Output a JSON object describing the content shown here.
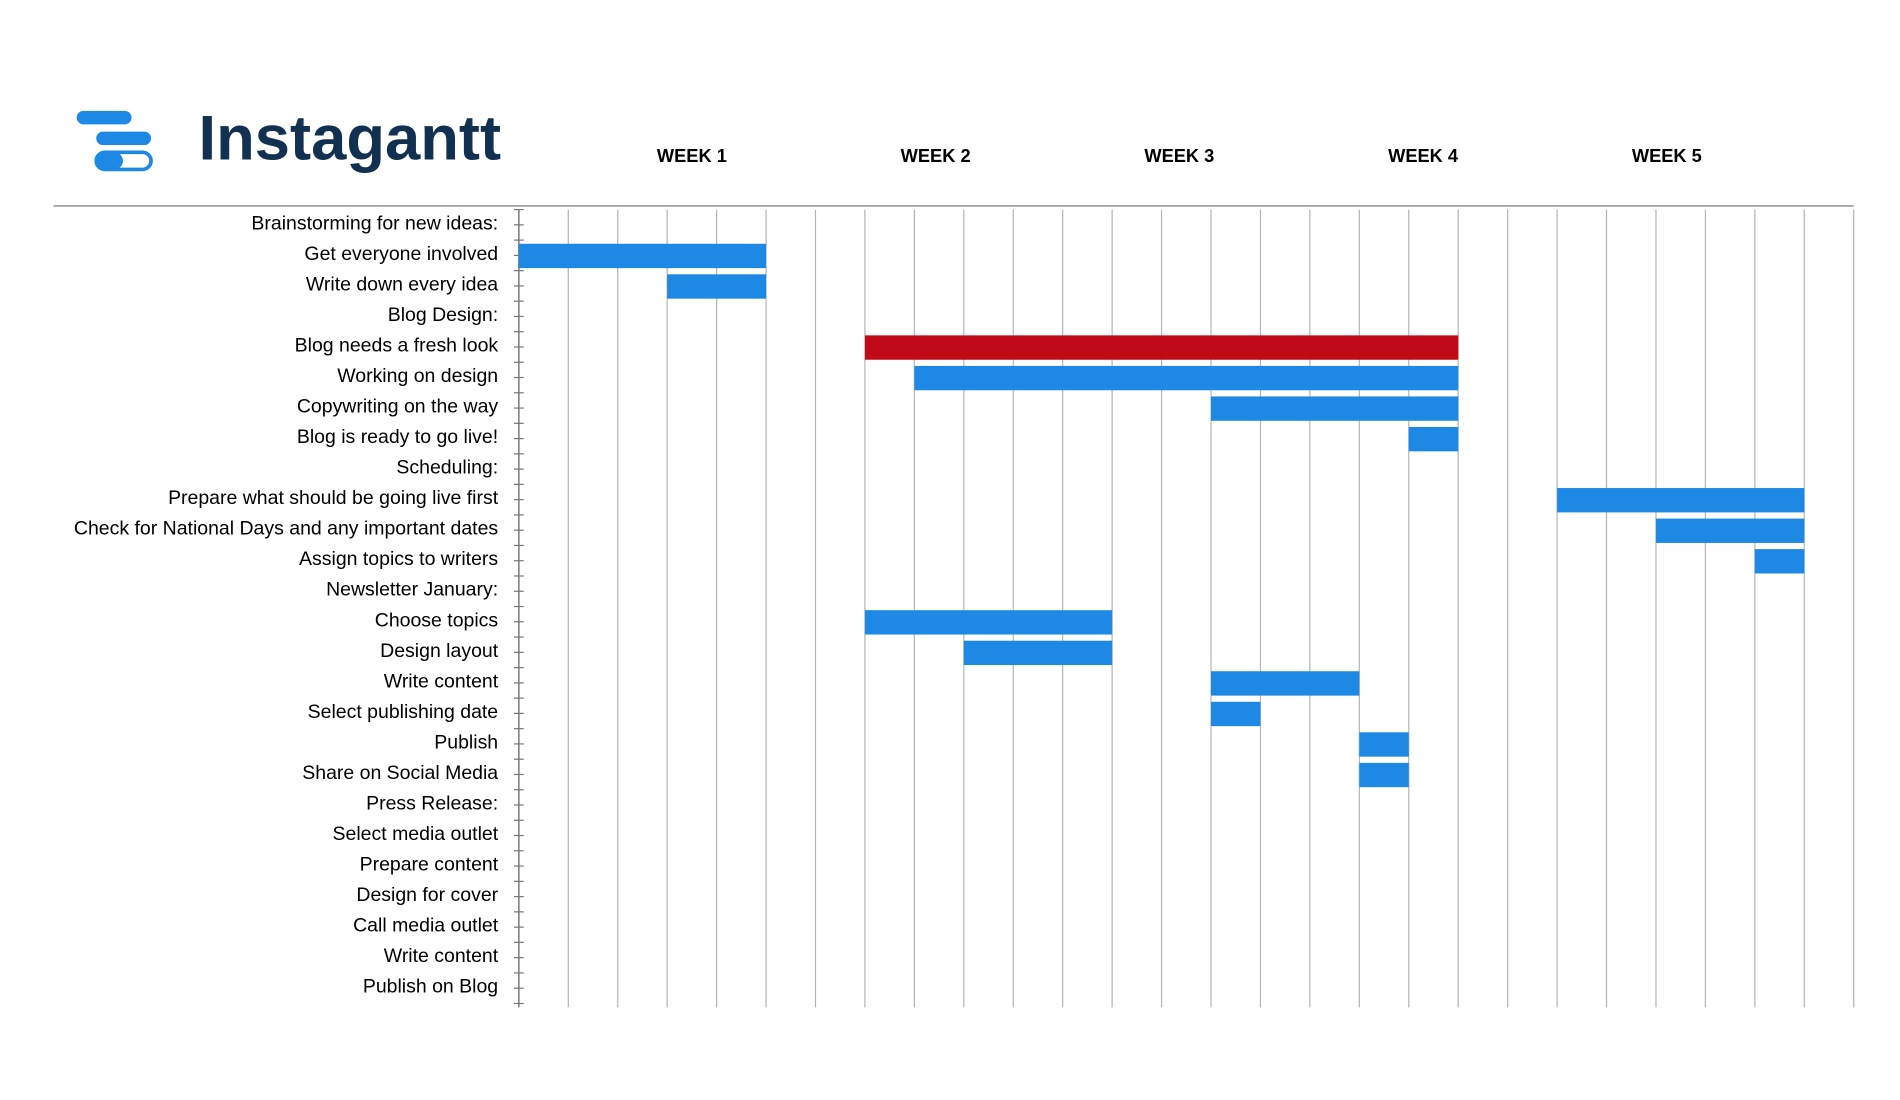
{
  "header": {
    "brand": "Instagantt"
  },
  "chart_data": {
    "type": "gantt",
    "weeks": [
      "WEEK 1",
      "WEEK 2",
      "WEEK 3",
      "WEEK 4",
      "WEEK 5"
    ],
    "xlim": [
      0,
      27
    ],
    "grid": true,
    "bar_color": "#1e88e5",
    "tasks": [
      {
        "name": "Brainstorming for new ideas:",
        "start": null,
        "end": null
      },
      {
        "name": "Get everyone involved",
        "start": 0,
        "end": 5
      },
      {
        "name": "Write down every idea",
        "start": 3,
        "end": 5
      },
      {
        "name": "Blog Design:",
        "start": null,
        "end": null
      },
      {
        "name": "Blog needs a fresh look",
        "start": 7,
        "end": 19,
        "color": "#c00a17"
      },
      {
        "name": "Working on design",
        "start": 8,
        "end": 19
      },
      {
        "name": "Copywriting on the way",
        "start": 14,
        "end": 19
      },
      {
        "name": "Blog is ready to go live!",
        "start": 18,
        "end": 19
      },
      {
        "name": "Scheduling:",
        "start": null,
        "end": null
      },
      {
        "name": "Prepare what should be going live first",
        "start": 21,
        "end": 26
      },
      {
        "name": "Check for National Days and any important dates",
        "start": 23,
        "end": 26
      },
      {
        "name": "Assign topics to writers",
        "start": 25,
        "end": 26
      },
      {
        "name": "Newsletter January:",
        "start": null,
        "end": null
      },
      {
        "name": "Choose topics",
        "start": 7,
        "end": 12
      },
      {
        "name": "Design layout",
        "start": 9,
        "end": 12
      },
      {
        "name": "Write content",
        "start": 14,
        "end": 17
      },
      {
        "name": "Select publishing date",
        "start": 14,
        "end": 15
      },
      {
        "name": "Publish",
        "start": 17,
        "end": 18
      },
      {
        "name": "Share on Social Media",
        "start": 17,
        "end": 18
      },
      {
        "name": "Press Release:",
        "start": null,
        "end": null
      },
      {
        "name": "Select media outlet",
        "start": null,
        "end": null
      },
      {
        "name": "Prepare content",
        "start": null,
        "end": null
      },
      {
        "name": "Design for cover",
        "start": null,
        "end": null
      },
      {
        "name": "Call media outlet",
        "start": null,
        "end": null
      },
      {
        "name": "Write content",
        "start": null,
        "end": null
      },
      {
        "name": "Publish on Blog",
        "start": null,
        "end": null
      }
    ]
  }
}
